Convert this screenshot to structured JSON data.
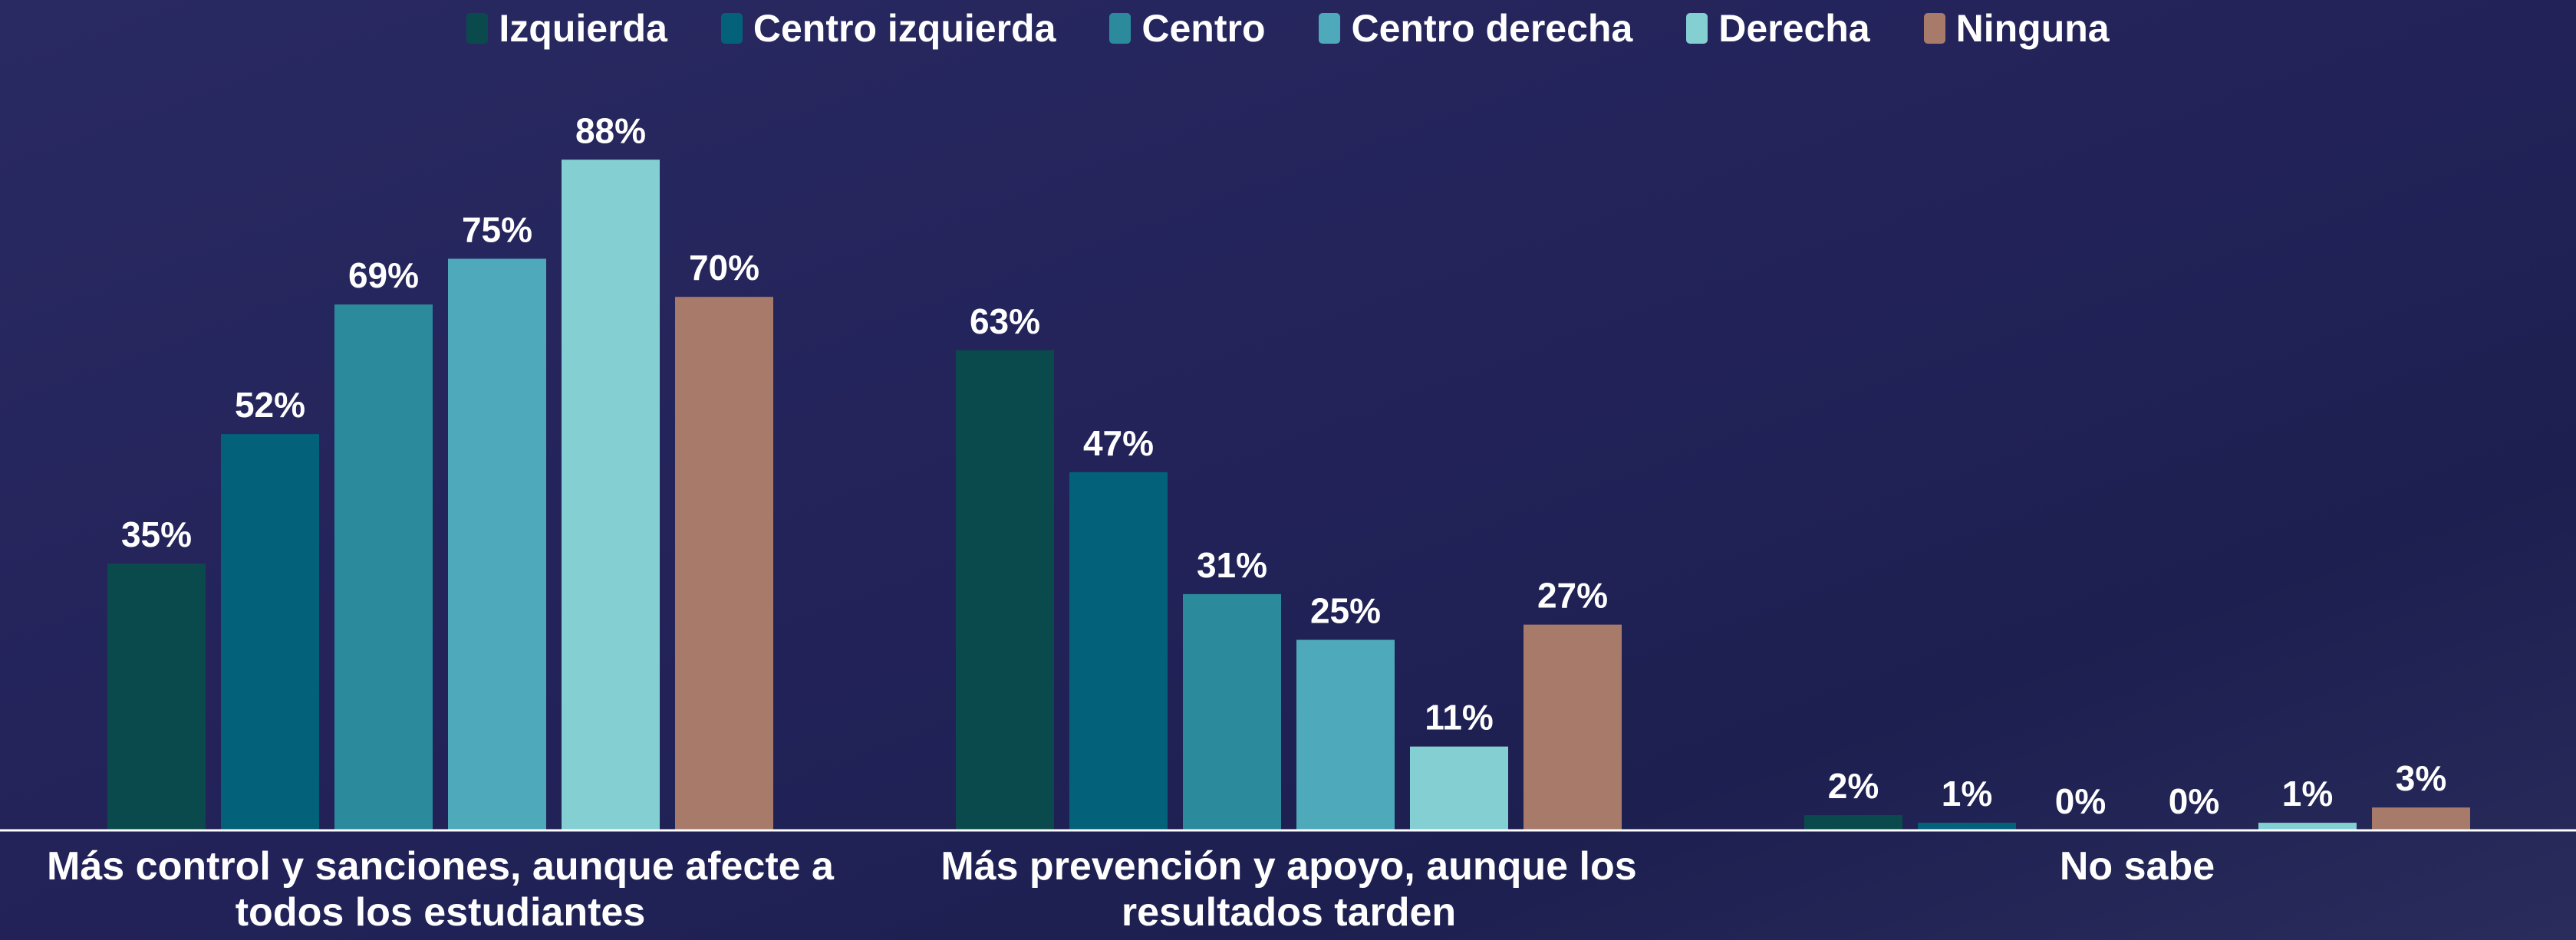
{
  "chart_data": {
    "type": "bar",
    "categories": [
      "Más control y sanciones, aunque afecte a todos los estudiantes",
      "Más prevención y apoyo, aunque los resultados tarden",
      "No sabe"
    ],
    "series": [
      {
        "name": "Izquierda",
        "color": "#0b4a4c",
        "values": [
          35,
          63,
          2
        ],
        "value_labels": [
          "35%",
          "63%",
          "2%"
        ]
      },
      {
        "name": "Centro izquierda",
        "color": "#03627a",
        "values": [
          52,
          47,
          1
        ],
        "value_labels": [
          "52%",
          "47%",
          "1%"
        ]
      },
      {
        "name": "Centro",
        "color": "#2b8b9c",
        "values": [
          69,
          31,
          0
        ],
        "value_labels": [
          "69%",
          "31%",
          "0%"
        ]
      },
      {
        "name": "Centro derecha",
        "color": "#4ea9ba",
        "values": [
          75,
          25,
          0
        ],
        "value_labels": [
          "75%",
          "25%",
          "0%"
        ]
      },
      {
        "name": "Derecha",
        "color": "#83cfd2",
        "values": [
          88,
          11,
          1
        ],
        "value_labels": [
          "88%",
          "11%",
          "1%"
        ]
      },
      {
        "name": "Ninguna",
        "color": "#a87a6a",
        "values": [
          70,
          27,
          3
        ],
        "value_labels": [
          "70%",
          "27%",
          "3%"
        ]
      }
    ],
    "ylim": [
      0,
      100
    ],
    "grid": false,
    "legend": "top"
  }
}
